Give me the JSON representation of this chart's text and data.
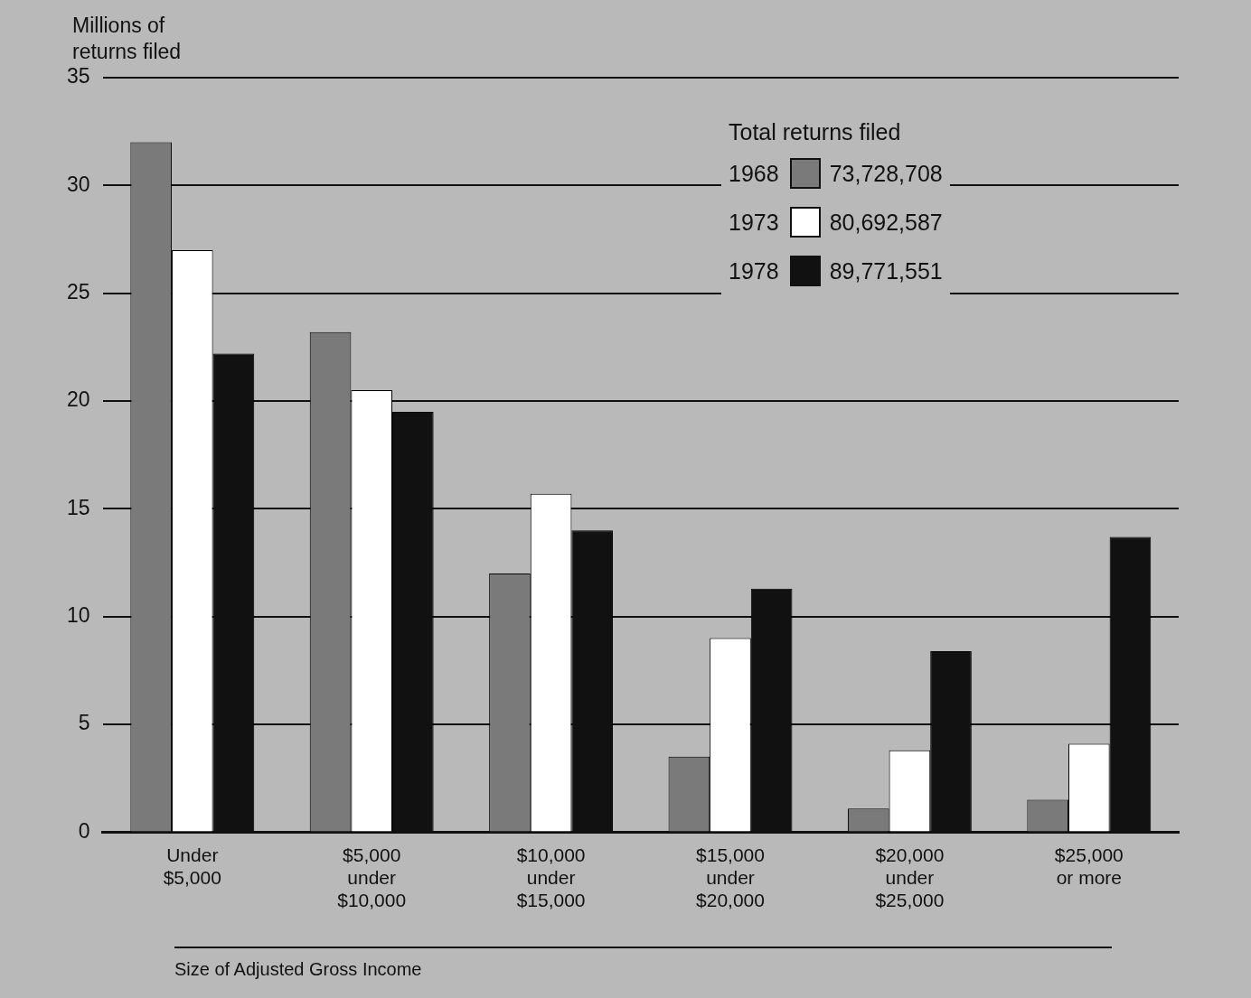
{
  "chart_data": {
    "type": "bar",
    "ylabel": "Millions of returns filed",
    "xlabel": "Size of Adjusted Gross Income",
    "legend_title": "Total returns filed",
    "categories": [
      "Under\n$5,000",
      "$5,000\nunder\n$10,000",
      "$10,000\nunder\n$15,000",
      "$15,000\nunder\n$20,000",
      "$20,000\nunder\n$25,000",
      "$25,000\nor more"
    ],
    "series": [
      {
        "name": "1968",
        "color": "#7a7a7a",
        "values": [
          32,
          23.2,
          12,
          3.5,
          1.1,
          1.5
        ]
      },
      {
        "name": "1973",
        "color": "#ffffff",
        "values": [
          27,
          20.5,
          15.7,
          9,
          3.8,
          4.1
        ]
      },
      {
        "name": "1978",
        "color": "#111111",
        "values": [
          22.2,
          19.5,
          14,
          11.3,
          8.4,
          13.7
        ]
      }
    ],
    "annotations": [
      "73,728,708",
      "80,692,587",
      "89,771,551"
    ],
    "ylim": [
      0,
      35
    ],
    "yticks": [
      0,
      5,
      10,
      15,
      20,
      25,
      30,
      35
    ],
    "grid": "y",
    "legend": "top right"
  }
}
